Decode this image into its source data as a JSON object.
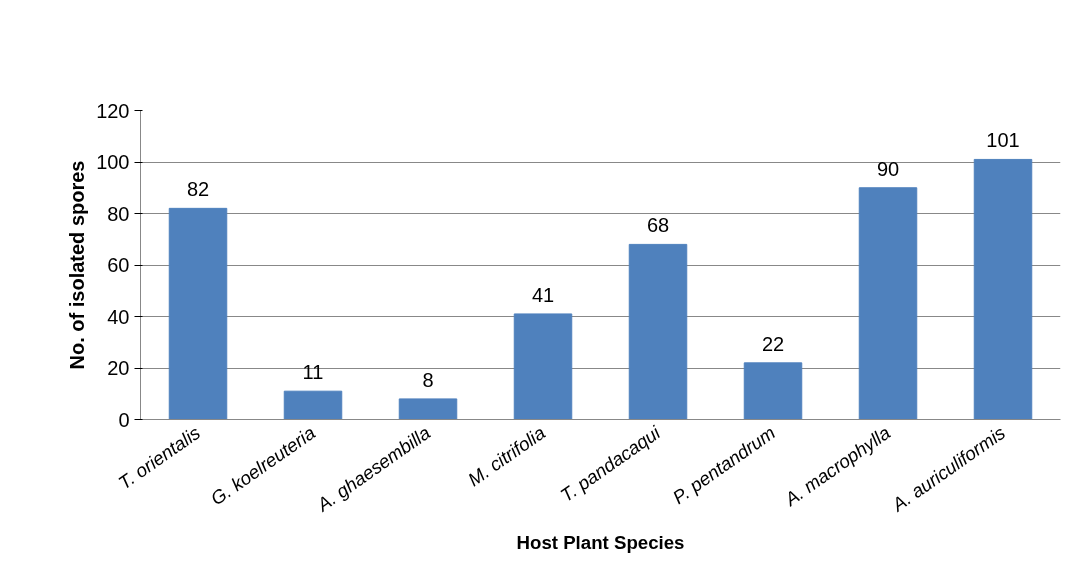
{
  "chart_data": {
    "type": "bar",
    "xlabel": "Host Plant Species",
    "ylabel": "No. of isolated spores",
    "categories": [
      "T. orientalis",
      "G. koelreuteria",
      "A. ghaesembilla",
      "M. citrifolia",
      "T. pandacaqui",
      "P. pentandrum",
      "A. macrophylla",
      "A. auriculiformis"
    ],
    "values": [
      82,
      11,
      8,
      41,
      68,
      22,
      90,
      101
    ],
    "color": "#4f81bd",
    "ylim": [
      0,
      120
    ],
    "yticks": [
      0,
      20,
      40,
      60,
      80,
      100,
      120
    ],
    "grid": "y",
    "data_labels": true
  }
}
